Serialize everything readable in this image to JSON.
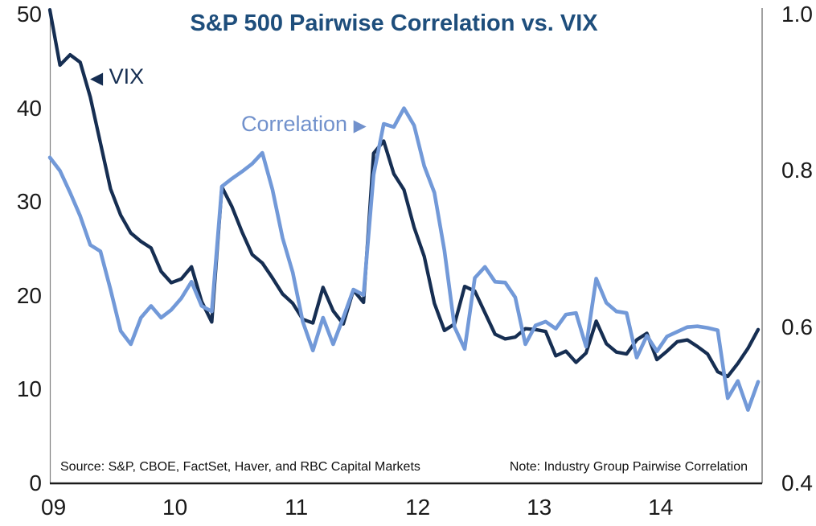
{
  "title": "S&P 500 Pairwise Correlation vs. VIX",
  "annotations": {
    "vix_arrow": "◀",
    "vix_label": "VIX",
    "correlation_label": "Correlation",
    "correlation_arrow": "▶"
  },
  "footnotes": {
    "source": "Source: S&P, CBOE, FactSet, Haver, and RBC Capital Markets",
    "note": "Note: Industry Group Pairwise Correlation"
  },
  "colors": {
    "title": "#1E4E7C",
    "vix_line": "#162E52",
    "correlation_line": "#7299D8",
    "correlation_label": "#7191CC",
    "axis_gray": "#808080",
    "axis_bottom": "#1a1a1a",
    "tick_text": "#1a1a1a"
  },
  "chart_data": {
    "type": "line",
    "title": "S&P 500 Pairwise Correlation vs. VIX",
    "x_unit": "month",
    "x_range": "Dec 2008 - Oct 2014",
    "x_tick_labels": [
      "09",
      "10",
      "11",
      "12",
      "13",
      "14"
    ],
    "grid": false,
    "legend_position": "inline-annotations",
    "left_axis": {
      "name": "VIX",
      "min": 0,
      "max": 50,
      "ticks": [
        0,
        10,
        20,
        30,
        40,
        50
      ]
    },
    "right_axis": {
      "name": "Correlation",
      "min": 0.4,
      "max": 1.0,
      "ticks": [
        "0.4",
        "0.6",
        "0.8",
        "1.0"
      ]
    },
    "series": [
      {
        "name": "VIX",
        "axis": "left",
        "color": "#162E52",
        "values": [
          50.5,
          44.6,
          45.7,
          44.9,
          41.2,
          36.3,
          31.4,
          28.6,
          26.7,
          25.8,
          25.1,
          22.6,
          21.4,
          21.8,
          23.1,
          19.4,
          17.2,
          31.6,
          29.5,
          26.8,
          24.4,
          23.5,
          21.9,
          20.2,
          19.2,
          17.5,
          17.1,
          20.9,
          18.4,
          17.0,
          20.6,
          19.3,
          35.2,
          36.5,
          33.0,
          31.3,
          27.3,
          24.2,
          19.2,
          16.3,
          17.0,
          21.0,
          20.5,
          18.2,
          15.9,
          15.4,
          15.6,
          16.5,
          16.4,
          16.2,
          13.6,
          14.1,
          12.9,
          13.9,
          17.3,
          14.9,
          14.0,
          13.8,
          15.3,
          16.0,
          13.2,
          14.1,
          15.1,
          15.3,
          14.6,
          13.8,
          11.9,
          11.4,
          12.8,
          14.4,
          16.4
        ]
      },
      {
        "name": "Correlation",
        "axis": "right",
        "color": "#7299D8",
        "values": [
          0.817,
          0.8,
          0.772,
          0.742,
          0.705,
          0.697,
          0.648,
          0.595,
          0.578,
          0.612,
          0.627,
          0.612,
          0.622,
          0.637,
          0.658,
          0.627,
          0.62,
          0.78,
          0.79,
          0.799,
          0.809,
          0.823,
          0.776,
          0.714,
          0.67,
          0.607,
          0.57,
          0.612,
          0.578,
          0.612,
          0.648,
          0.641,
          0.795,
          0.86,
          0.856,
          0.88,
          0.858,
          0.806,
          0.772,
          0.698,
          0.6,
          0.572,
          0.663,
          0.677,
          0.658,
          0.657,
          0.638,
          0.578,
          0.602,
          0.607,
          0.598,
          0.616,
          0.618,
          0.575,
          0.662,
          0.631,
          0.62,
          0.618,
          0.561,
          0.589,
          0.569,
          0.588,
          0.594,
          0.6,
          0.601,
          0.599,
          0.596,
          0.509,
          0.531,
          0.494,
          0.53
        ]
      }
    ]
  }
}
